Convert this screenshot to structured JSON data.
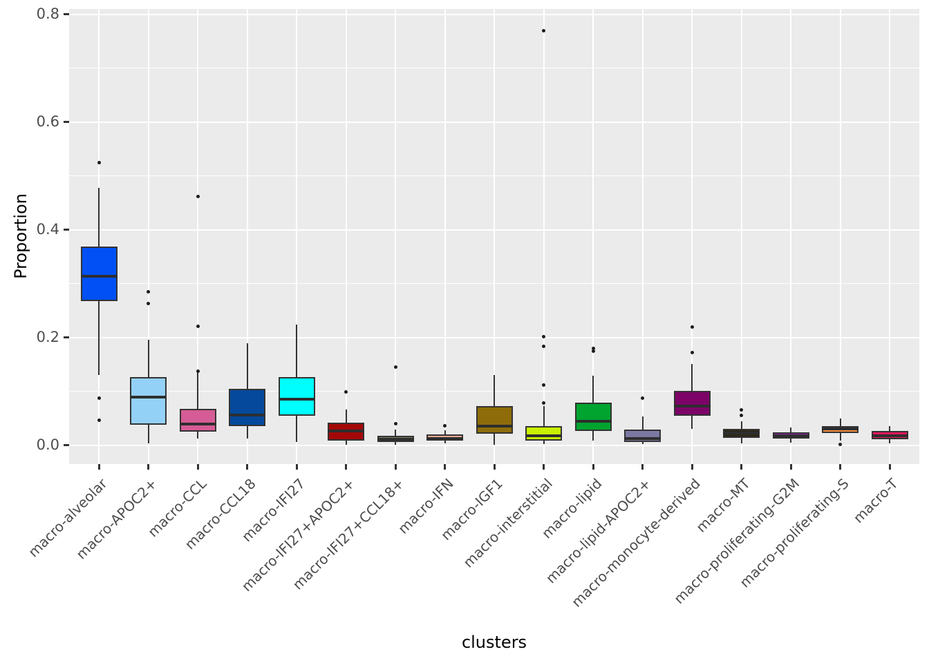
{
  "chart_data": {
    "type": "boxplot",
    "title": "",
    "xlabel": "clusters",
    "ylabel": "Proportion",
    "ylim": [
      -0.035,
      0.81
    ],
    "y_major_ticks": [
      0.0,
      0.2,
      0.4,
      0.6,
      0.8
    ],
    "y_minor_ticks": [
      0.1,
      0.3,
      0.5,
      0.7
    ],
    "grid": true,
    "legend": "none",
    "panel_bg": "#EBEBEB",
    "grid_color": "#FFFFFF",
    "axis_text_color": "#4D4D4D",
    "tick_color": "#333333",
    "box_border_color": "#333333",
    "median_color": "#2E2E2E",
    "outlier_color": "#1C1C1C",
    "categories": [
      "macro-alveolar",
      "macro-APOC2+",
      "macro-CCL",
      "macro-CCL18",
      "macro-IFI27",
      "macro-IFI27+APOC2+",
      "macro-IFI27+CCL18+",
      "macro-IFN",
      "macro-IGF1",
      "macro-interstitial",
      "macro-lipid",
      "macro-lipid-APOC2+",
      "macro-monocyte-derived",
      "macro-MT",
      "macro-proliferating-G2M",
      "macro-proliferating-S",
      "macro-T"
    ],
    "boxes": [
      {
        "label": "macro-alveolar",
        "color": "#0050F5",
        "whisker_low": 0.131,
        "q1": 0.267,
        "median": 0.314,
        "q3": 0.369,
        "whisker_high": 0.478,
        "outliers": [
          0.525,
          0.088,
          0.047
        ]
      },
      {
        "label": "macro-APOC2+",
        "color": "#94D1F7",
        "whisker_low": 0.004,
        "q1": 0.038,
        "median": 0.089,
        "q3": 0.126,
        "whisker_high": 0.196,
        "outliers": [
          0.285,
          0.263
        ]
      },
      {
        "label": "macro-CCL",
        "color": "#D65C95",
        "whisker_low": 0.012,
        "q1": 0.025,
        "median": 0.04,
        "q3": 0.068,
        "whisker_high": 0.136,
        "outliers": [
          0.462,
          0.221,
          0.138
        ]
      },
      {
        "label": "macro-CCL18",
        "color": "#04499C",
        "whisker_low": 0.013,
        "q1": 0.036,
        "median": 0.056,
        "q3": 0.105,
        "whisker_high": 0.19,
        "outliers": []
      },
      {
        "label": "macro-IFI27",
        "color": "#00FEFE",
        "whisker_low": 0.006,
        "q1": 0.055,
        "median": 0.086,
        "q3": 0.126,
        "whisker_high": 0.224,
        "outliers": []
      },
      {
        "label": "macro-IFI27+APOC2+",
        "color": "#A30808",
        "whisker_low": 0.001,
        "q1": 0.009,
        "median": 0.026,
        "q3": 0.042,
        "whisker_high": 0.066,
        "outliers": [
          0.099
        ]
      },
      {
        "label": "macro-IFI27+CCL18+",
        "color": "#798060",
        "whisker_low": 0.001,
        "q1": 0.006,
        "median": 0.011,
        "q3": 0.018,
        "whisker_high": 0.029,
        "outliers": [
          0.145,
          0.04
        ]
      },
      {
        "label": "macro-IFN",
        "color": "#F7AB92",
        "whisker_low": 0.003,
        "q1": 0.009,
        "median": 0.013,
        "q3": 0.02,
        "whisker_high": 0.028,
        "outliers": [
          0.036
        ]
      },
      {
        "label": "macro-IGF1",
        "color": "#8E6C0A",
        "whisker_low": 0.001,
        "q1": 0.021,
        "median": 0.036,
        "q3": 0.073,
        "whisker_high": 0.131,
        "outliers": []
      },
      {
        "label": "macro-interstitial",
        "color": "#C9F002",
        "whisker_low": 0.002,
        "q1": 0.008,
        "median": 0.018,
        "q3": 0.036,
        "whisker_high": 0.073,
        "outliers": [
          0.77,
          0.201,
          0.183,
          0.112,
          0.079
        ]
      },
      {
        "label": "macro-lipid",
        "color": "#00A42F",
        "whisker_low": 0.008,
        "q1": 0.027,
        "median": 0.045,
        "q3": 0.079,
        "whisker_high": 0.129,
        "outliers": [
          0.18,
          0.175
        ]
      },
      {
        "label": "macro-lipid-APOC2+",
        "color": "#7B79A2",
        "whisker_low": 0.002,
        "q1": 0.006,
        "median": 0.012,
        "q3": 0.029,
        "whisker_high": 0.054,
        "outliers": [
          0.087
        ]
      },
      {
        "label": "macro-monocyte-derived",
        "color": "#7D0368",
        "whisker_low": 0.031,
        "q1": 0.055,
        "median": 0.073,
        "q3": 0.101,
        "whisker_high": 0.151,
        "outliers": [
          0.219,
          0.172
        ]
      },
      {
        "label": "macro-MT",
        "color": "#2D2817",
        "whisker_low": 0.003,
        "q1": 0.014,
        "median": 0.023,
        "q3": 0.03,
        "whisker_high": 0.044,
        "outliers": [
          0.066,
          0.056
        ]
      },
      {
        "label": "macro-proliferating-G2M",
        "color": "#9B24BE",
        "whisker_low": 0.005,
        "q1": 0.012,
        "median": 0.018,
        "q3": 0.024,
        "whisker_high": 0.033,
        "outliers": []
      },
      {
        "label": "macro-proliferating-S",
        "color": "#F69142",
        "whisker_low": 0.009,
        "q1": 0.023,
        "median": 0.03,
        "q3": 0.036,
        "whisker_high": 0.049,
        "outliers": [
          0.002
        ]
      },
      {
        "label": "macro-T",
        "color": "#E3175E",
        "whisker_low": 0.004,
        "q1": 0.011,
        "median": 0.017,
        "q3": 0.026,
        "whisker_high": 0.036,
        "outliers": []
      }
    ]
  }
}
